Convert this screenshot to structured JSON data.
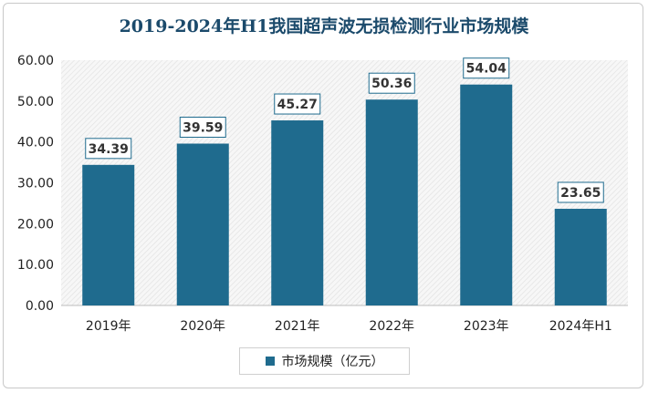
{
  "chart_data": {
    "type": "bar",
    "title": "2019-2024年H1我国超声波无损检测行业市场规模",
    "categories": [
      "2019年",
      "2020年",
      "2021年",
      "2022年",
      "2023年",
      "2024年H1"
    ],
    "series": [
      {
        "name": "市场规模（亿元）",
        "values": [
          34.39,
          39.59,
          45.27,
          50.36,
          54.04,
          23.65
        ]
      }
    ],
    "value_labels": [
      "34.39",
      "39.59",
      "45.27",
      "50.36",
      "54.04",
      "23.65"
    ],
    "y_ticks": [
      "0.00",
      "10.00",
      "20.00",
      "30.00",
      "40.00",
      "50.00",
      "60.00"
    ],
    "ylim": [
      0,
      60
    ],
    "legend_position": "bottom-center",
    "grid": false,
    "colors": {
      "bar": "#1f6b8e",
      "title": "#1b4a6b",
      "label_border": "#1f6b8e"
    }
  }
}
